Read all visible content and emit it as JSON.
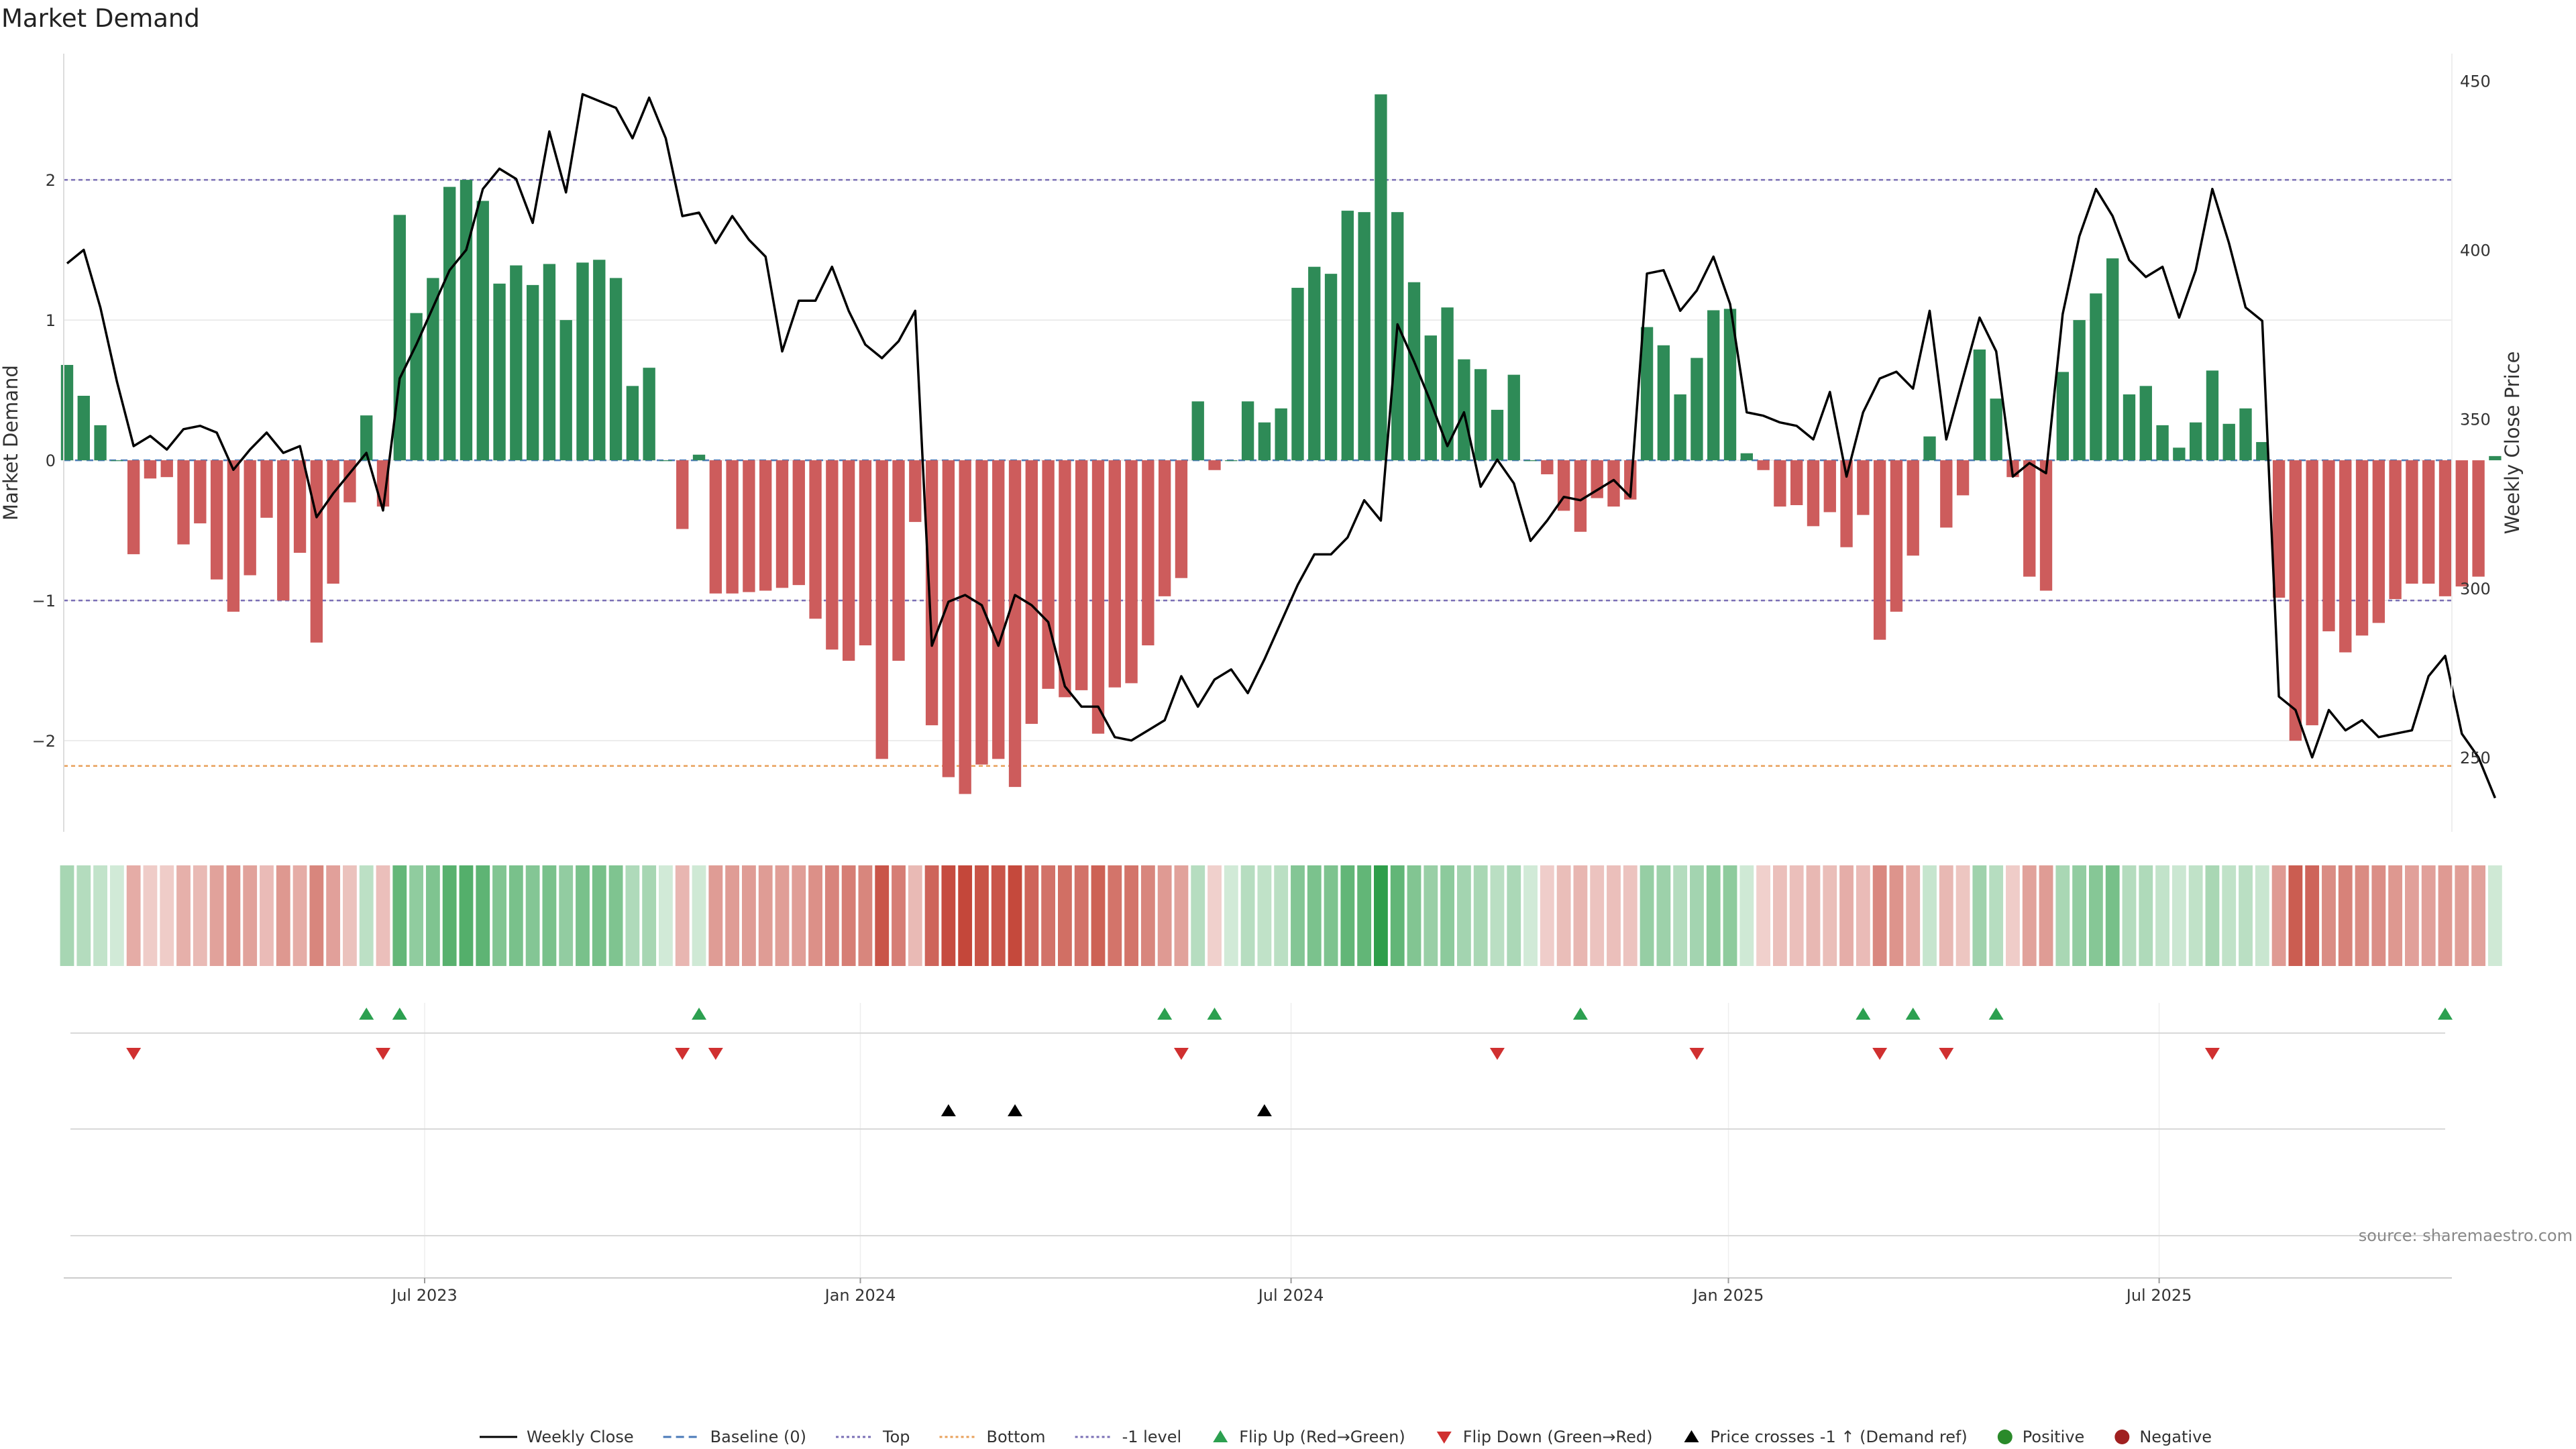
{
  "chart_data": {
    "type": "bar",
    "title": "Market Demand",
    "ylabel_left": "Market Demand",
    "ylabel_right": "Weekly Close Price",
    "ylim_left": [
      -2.65,
      2.9
    ],
    "ylim_right": [
      228,
      458
    ],
    "yticks_left": [
      2,
      1,
      0,
      -1,
      -2
    ],
    "yticks_left_labels": [
      "2",
      "1",
      "0",
      "−1",
      "−2"
    ],
    "yticks_right": [
      450,
      400,
      350,
      300,
      250
    ],
    "yticks_right_labels": [
      "450",
      "400",
      "350",
      "300",
      "250"
    ],
    "reference_lines": [
      {
        "name": "Top",
        "value": 2,
        "color": "#7a6fb5"
      },
      {
        "name": "-1 level",
        "value": -1,
        "color": "#7a6fb5"
      },
      {
        "name": "Bottom",
        "value": -2.18,
        "color": "#e8a05a"
      }
    ],
    "x_start_week": 0,
    "x_end_week": 143,
    "x_ticks": [
      {
        "label": "Jul 2023",
        "week": 21.5
      },
      {
        "label": "Jan 2024",
        "week": 47.7
      },
      {
        "label": "Jul 2024",
        "week": 73.6
      },
      {
        "label": "Jan 2025",
        "week": 99.9
      },
      {
        "label": "Jul 2025",
        "week": 125.8
      }
    ],
    "demand": [
      0.68,
      0.46,
      0.25,
      0.0,
      -0.67,
      -0.13,
      -0.12,
      -0.6,
      -0.45,
      -0.85,
      -1.08,
      -0.82,
      -0.41,
      -1.0,
      -0.66,
      -1.3,
      -0.88,
      -0.3,
      0.32,
      -0.33,
      1.75,
      1.05,
      1.3,
      1.95,
      2.0,
      1.85,
      1.26,
      1.39,
      1.25,
      1.4,
      1.0,
      1.41,
      1.43,
      1.3,
      0.53,
      0.66,
      0.0,
      -0.49,
      0.04,
      -0.95,
      -0.95,
      -0.94,
      -0.93,
      -0.91,
      -0.89,
      -1.13,
      -1.35,
      -1.43,
      -1.32,
      -2.13,
      -1.43,
      -0.44,
      -1.89,
      -2.26,
      -2.38,
      -2.17,
      -2.13,
      -2.33,
      -1.88,
      -1.63,
      -1.69,
      -1.64,
      -1.95,
      -1.62,
      -1.59,
      -1.32,
      -0.97,
      -0.84,
      0.42,
      -0.07,
      0.0,
      0.42,
      0.27,
      0.37,
      1.23,
      1.38,
      1.33,
      1.78,
      1.77,
      2.61,
      1.77,
      1.27,
      0.89,
      1.09,
      0.72,
      0.65,
      0.36,
      0.61,
      0.0,
      -0.1,
      -0.36,
      -0.51,
      -0.27,
      -0.33,
      -0.28,
      0.95,
      0.82,
      0.47,
      0.73,
      1.07,
      1.08,
      0.05,
      -0.07,
      -0.33,
      -0.32,
      -0.47,
      -0.37,
      -0.62,
      -0.39,
      -1.28,
      -1.08,
      -0.68,
      0.17,
      -0.48,
      -0.25,
      0.79,
      0.44,
      -0.12,
      -0.83,
      -0.93,
      0.63,
      1.0,
      1.19,
      1.44,
      0.47,
      0.53,
      0.25,
      0.09,
      0.27,
      0.64,
      0.26,
      0.37,
      0.13,
      -0.98,
      -2.0,
      -1.89,
      -1.22,
      -1.37,
      -1.25,
      -1.16,
      -0.99,
      -0.88,
      -0.88,
      -0.97,
      -0.9,
      -0.83,
      0.03
    ],
    "weekly_close": [
      396,
      400,
      383,
      361,
      342,
      345,
      341,
      347,
      348,
      346,
      335,
      341,
      346,
      340,
      342,
      321,
      328,
      334,
      340,
      323,
      362,
      372,
      383,
      394,
      400,
      418,
      424,
      421,
      408,
      435,
      417,
      446,
      444,
      442,
      433,
      445,
      433,
      410,
      411,
      402,
      410,
      403,
      398,
      370,
      385,
      385,
      395,
      382,
      372,
      368,
      373,
      382,
      283,
      296,
      298,
      295,
      283,
      298,
      295,
      290,
      271,
      265,
      265,
      256,
      255,
      258,
      261,
      274,
      265,
      273,
      276,
      269,
      279,
      290,
      301,
      310,
      310,
      315,
      326,
      320,
      378,
      367,
      355,
      342,
      352,
      330,
      338,
      331,
      314,
      320,
      327,
      326,
      329,
      332,
      327,
      393,
      394,
      382,
      388,
      398,
      384,
      352,
      351,
      349,
      348,
      344,
      358,
      333,
      352,
      362,
      364,
      359,
      382,
      344,
      362,
      380,
      370,
      333,
      337,
      334,
      381,
      404,
      418,
      410,
      397,
      392,
      395,
      380,
      394,
      418,
      402,
      383,
      379,
      268,
      264,
      250,
      264,
      258,
      261,
      256,
      257,
      258,
      274,
      280,
      257,
      250,
      238
    ],
    "flip_up_weeks": [
      18,
      20,
      38,
      66,
      69,
      91,
      108,
      111,
      116,
      143
    ],
    "flip_down_weeks": [
      4,
      19,
      37,
      39,
      67,
      86,
      98,
      109,
      113,
      129
    ],
    "price_cross_weeks": [
      53,
      57,
      72
    ],
    "x_gridlines_weeks": [
      21.5,
      47.7,
      73.6,
      99.9,
      125.8
    ],
    "legend": [
      {
        "label": "Weekly Close",
        "marker": "line-solid",
        "color": "#000000"
      },
      {
        "label": "Baseline (0)",
        "marker": "line-dashed",
        "color": "#4a7ab8"
      },
      {
        "label": "Top",
        "marker": "line-dotted",
        "color": "#7a6fb5"
      },
      {
        "label": "Bottom",
        "marker": "line-dotted",
        "color": "#e8a05a"
      },
      {
        "label": "-1 level",
        "marker": "line-dotted",
        "color": "#7a6fb5"
      },
      {
        "label": "Flip Up (Red→Green)",
        "marker": "triangle-up",
        "color": "#2ca050"
      },
      {
        "label": "Flip Down (Green→Red)",
        "marker": "triangle-down",
        "color": "#d03030"
      },
      {
        "label": "Price crosses -1 ↑ (Demand ref)",
        "marker": "triangle-up",
        "color": "#000000"
      },
      {
        "label": "Positive",
        "marker": "circle",
        "color": "#2a8a2a"
      },
      {
        "label": "Negative",
        "marker": "circle",
        "color": "#a02020"
      }
    ],
    "colors": {
      "positive_bar": "#2e8b57",
      "negative_bar": "#cd5c5c",
      "heat_pos": "#2e9e4a",
      "heat_neg": "#c0392b",
      "flip_up": "#2ca050",
      "flip_down": "#d03030",
      "cross": "#000000",
      "grid": "#e6e6e6",
      "price_line": "#000000"
    }
  },
  "source_note": "source: sharemaestro.com"
}
